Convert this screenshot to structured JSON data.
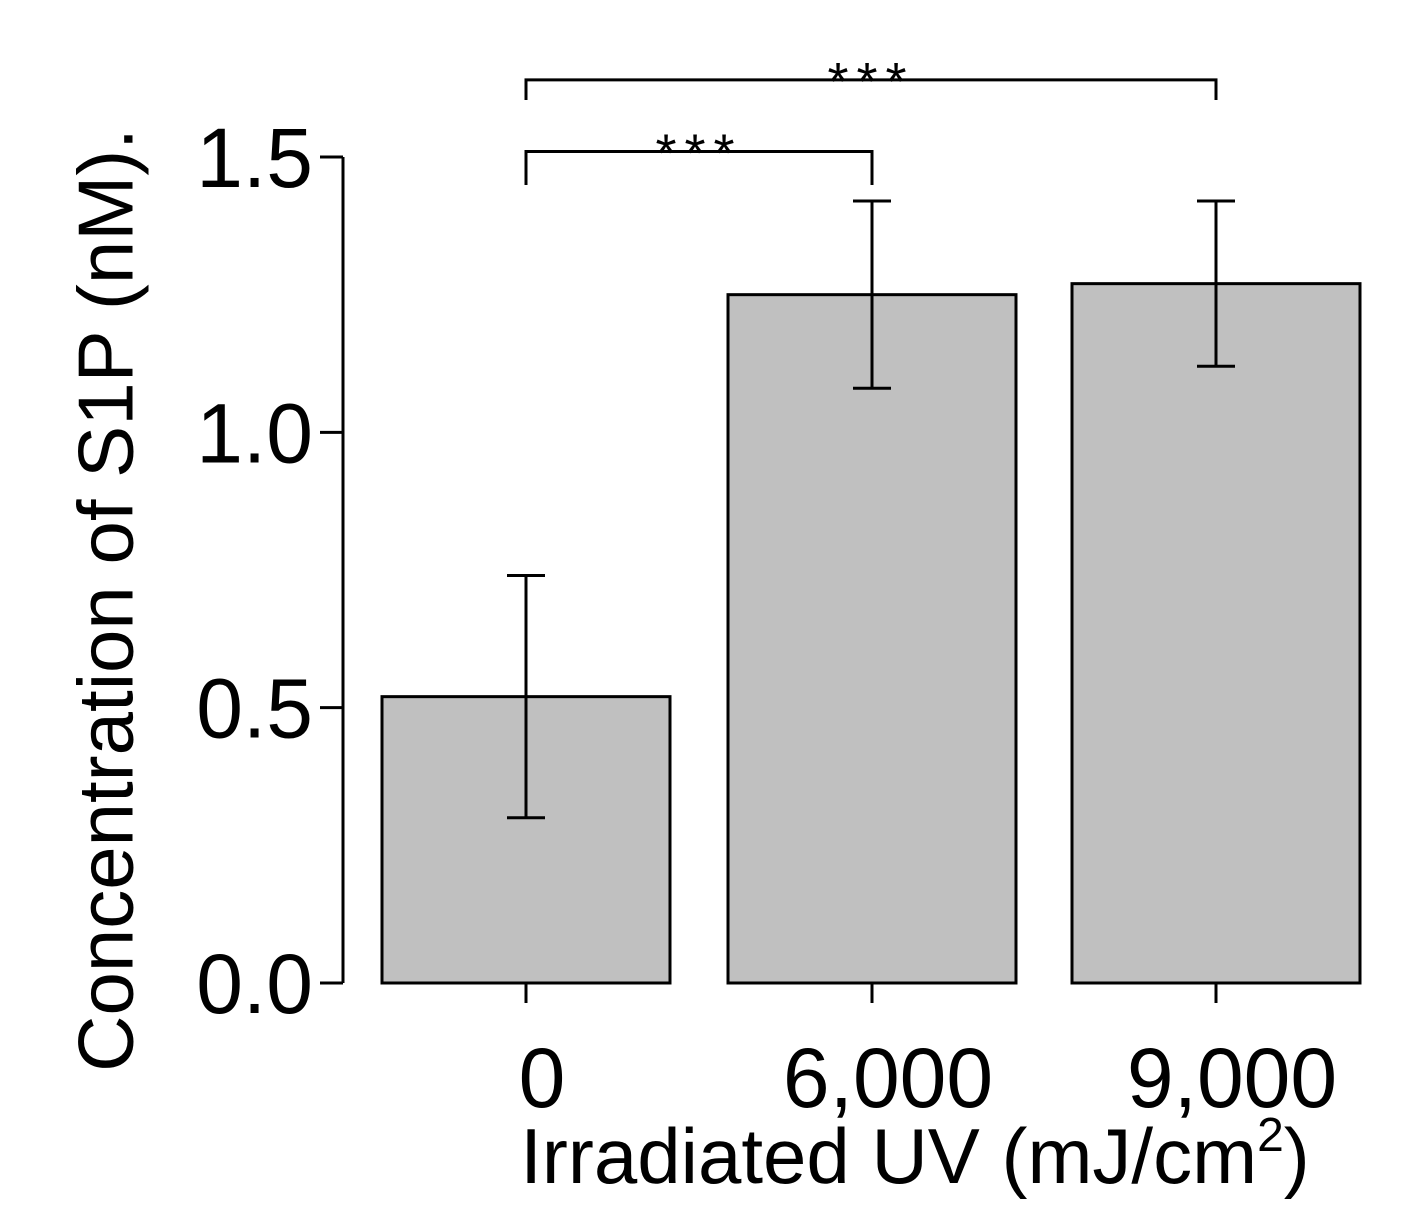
{
  "chart_data": {
    "type": "bar",
    "title": "",
    "categories": [
      "0",
      "6,000",
      "9,000"
    ],
    "values": [
      0.52,
      1.25,
      1.27
    ],
    "error": [
      0.22,
      0.17,
      0.15
    ],
    "ylabel": "Concentration of S1P (nM).",
    "xlabel_main": "Irradiated UV (mJ/cm",
    "xlabel_sup": "2",
    "xlabel_close": ")",
    "ylim": [
      0,
      1.5
    ],
    "yticks": [
      "0.0",
      "0.5",
      "1.0",
      "1.5"
    ],
    "ytick_values": [
      0,
      0.5,
      1.0,
      1.5
    ],
    "grid": false,
    "significance": [
      {
        "from": 0,
        "to": 1,
        "label": "***",
        "y": 1.51
      },
      {
        "from": 0,
        "to": 2,
        "label": "***",
        "y": 1.64
      }
    ],
    "bar_color": "#c0c0c0",
    "series": [
      {
        "name": "S1P",
        "values": [
          0.52,
          1.25,
          1.27
        ]
      }
    ]
  }
}
